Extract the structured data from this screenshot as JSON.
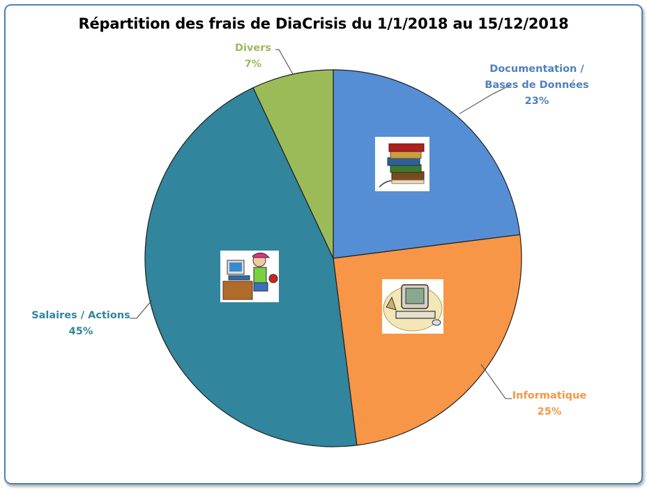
{
  "chart_data": {
    "type": "pie",
    "title": "Répartition des frais de DiaCrisis du 1/1/2018 au 15/12/2018",
    "slices": [
      {
        "label_lines": [
          "Documentation /",
          "Bases de Données"
        ],
        "value": 23,
        "value_label": "23%",
        "color": "#558ed5",
        "label_color": "#4f81bd",
        "icon": "books-icon"
      },
      {
        "label_lines": [
          "Informatique"
        ],
        "value": 25,
        "value_label": "25%",
        "color": "#f79646",
        "label_color": "#f79646",
        "icon": "computer-icon"
      },
      {
        "label_lines": [
          "Salaires / Actions"
        ],
        "value": 45,
        "value_label": "45%",
        "color": "#31859c",
        "label_color": "#31859c",
        "icon": "worker-at-desk-icon"
      },
      {
        "label_lines": [
          "Divers"
        ],
        "value": 7,
        "value_label": "7%",
        "color": "#9bbb59",
        "label_color": "#9bbb59",
        "icon": ""
      }
    ],
    "start_angle_deg": 0,
    "direction": "clockwise",
    "border_color": "#4f81bd"
  }
}
